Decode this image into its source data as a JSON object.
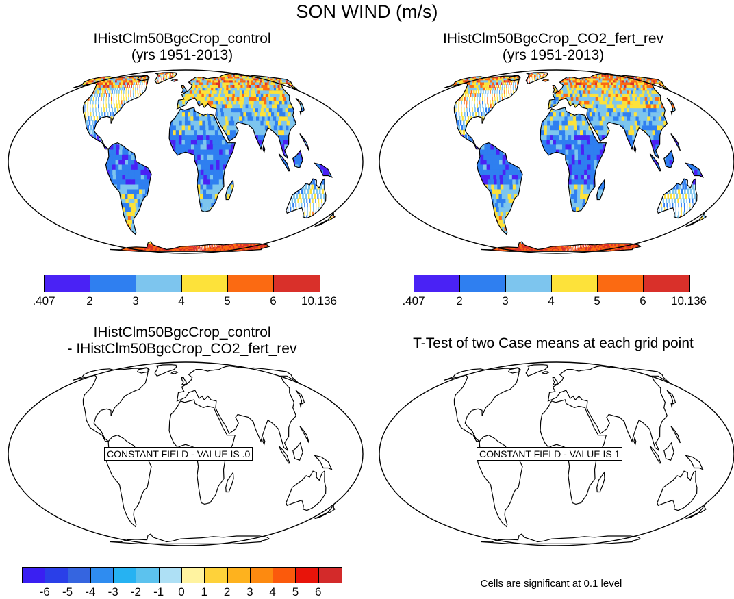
{
  "title": "SON WIND (m/s)",
  "panels": [
    {
      "title_line1": "IHistClm50BgcCrop_control",
      "title_line2": "(yrs 1951-2013)"
    },
    {
      "title_line1": "IHistClm50BgcCrop_CO2_fert_rev",
      "title_line2": "(yrs 1951-2013)"
    },
    {
      "title_line1": "IHistClm50BgcCrop_control",
      "title_line2": "- IHistClm50BgcCrop_CO2_fert_rev",
      "constant_label": "CONSTANT FIELD - VALUE IS .0"
    },
    {
      "title_line1": "T-Test of two Case means at each grid point",
      "constant_label": "CONSTANT FIELD - VALUE IS 1"
    }
  ],
  "colorbar_wind": {
    "labels": [
      ".407",
      "2",
      "3",
      "4",
      "5",
      "6",
      "10.136"
    ],
    "colors": [
      "#4a22f5",
      "#2f7ff0",
      "#7dc5ee",
      "#fde23a",
      "#fb6a12",
      "#d9302a"
    ]
  },
  "colorbar_diff": {
    "labels": [
      "-6",
      "-5",
      "-4",
      "-3",
      "-2",
      "-1",
      "0",
      "1",
      "2",
      "3",
      "4",
      "5",
      "6"
    ],
    "colors": [
      "#3a1ff2",
      "#2a3fe8",
      "#3565e0",
      "#2f8cf0",
      "#26b2f2",
      "#5cc2ee",
      "#aee0f5",
      "#fff3a0",
      "#fed23a",
      "#feb21e",
      "#fd8a10",
      "#fb5a0c",
      "#e8140a",
      "#d32a2a"
    ]
  },
  "significance_note": "Cells are significant at 0.1 level"
}
